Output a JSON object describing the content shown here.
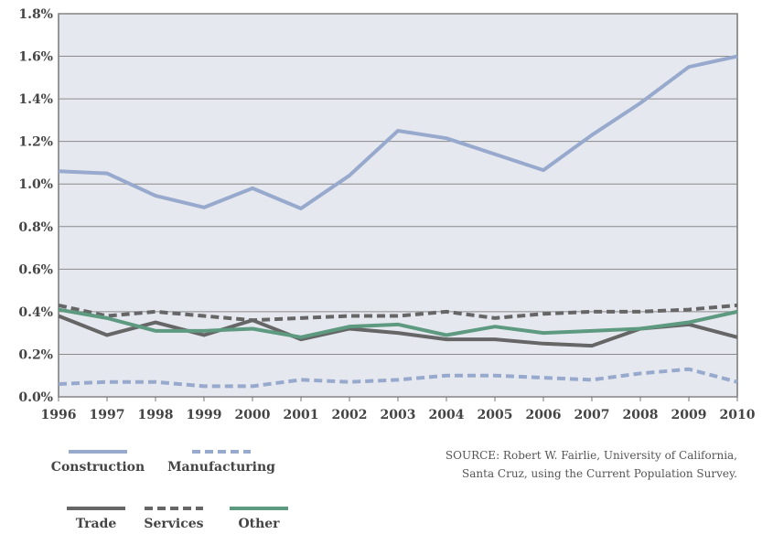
{
  "chart_data": {
    "type": "line",
    "x": [
      1996,
      1997,
      1998,
      1999,
      2000,
      2001,
      2002,
      2003,
      2004,
      2005,
      2006,
      2007,
      2008,
      2009,
      2010
    ],
    "xlim": [
      1996,
      2010
    ],
    "ylim": [
      0,
      1.8
    ],
    "yticks": [
      {
        "value": 0,
        "label": "0.0%"
      },
      {
        "value": 0.2,
        "label": "0.2%"
      },
      {
        "value": 0.4,
        "label": "0.4%"
      },
      {
        "value": 0.6,
        "label": "0.6%"
      },
      {
        "value": 0.8,
        "label": "0.8%"
      },
      {
        "value": 1.0,
        "label": "1.0%"
      },
      {
        "value": 1.2,
        "label": "1.2%"
      },
      {
        "value": 1.4,
        "label": "1.4%"
      },
      {
        "value": 1.6,
        "label": "1.6%"
      },
      {
        "value": 1.8,
        "label": "1.8%"
      }
    ],
    "grid": true,
    "annotation": [
      "SOURCE: Robert W. Fairlie, University of California,",
      "Santa Cruz, using the Current Population Survey."
    ],
    "series": [
      {
        "name": "Construction",
        "color": "#97a9cc",
        "dashed": false,
        "values": [
          1.06,
          1.05,
          0.945,
          0.89,
          0.98,
          0.885,
          1.04,
          1.25,
          1.215,
          1.14,
          1.065,
          1.23,
          1.38,
          1.55,
          1.6
        ]
      },
      {
        "name": "Manufacturing",
        "color": "#97a9cc",
        "dashed": true,
        "values": [
          0.06,
          0.07,
          0.07,
          0.05,
          0.05,
          0.08,
          0.07,
          0.08,
          0.1,
          0.1,
          0.09,
          0.08,
          0.11,
          0.13,
          0.07
        ]
      },
      {
        "name": "Trade",
        "color": "#666666",
        "dashed": false,
        "values": [
          0.38,
          0.29,
          0.35,
          0.29,
          0.36,
          0.27,
          0.32,
          0.3,
          0.27,
          0.27,
          0.25,
          0.24,
          0.32,
          0.34,
          0.28
        ]
      },
      {
        "name": "Services",
        "color": "#666666",
        "dashed": true,
        "values": [
          0.43,
          0.38,
          0.4,
          0.38,
          0.36,
          0.37,
          0.38,
          0.38,
          0.4,
          0.37,
          0.39,
          0.4,
          0.4,
          0.41,
          0.43
        ]
      },
      {
        "name": "Other",
        "color": "#5e9a80",
        "dashed": false,
        "values": [
          0.41,
          0.37,
          0.31,
          0.31,
          0.32,
          0.28,
          0.33,
          0.34,
          0.29,
          0.33,
          0.3,
          0.31,
          0.32,
          0.35,
          0.4
        ]
      }
    ]
  }
}
